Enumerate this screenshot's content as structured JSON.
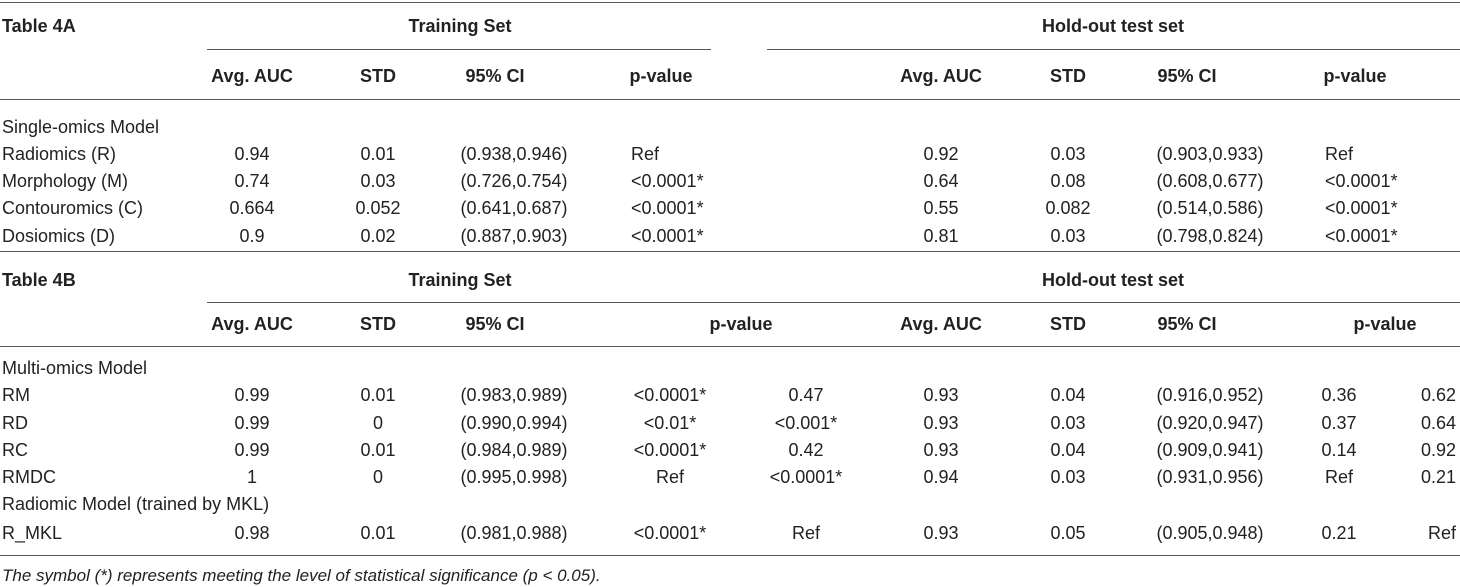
{
  "tableA": {
    "title": "Table 4A",
    "training_header": "Training Set",
    "holdout_header": "Hold-out test set",
    "columns": [
      "Avg. AUC",
      "STD",
      "95% CI",
      "p-value"
    ],
    "group_label": "Single-omics Model",
    "rows": [
      {
        "name": "Radiomics (R)",
        "tr": [
          "0.94",
          "0.01",
          "(0.938,0.946)",
          "Ref"
        ],
        "ho": [
          "0.92",
          "0.03",
          "(0.903,0.933)",
          "Ref"
        ]
      },
      {
        "name": "Morphology (M)",
        "tr": [
          "0.74",
          "0.03",
          "(0.726,0.754)",
          "<0.0001*"
        ],
        "ho": [
          "0.64",
          "0.08",
          "(0.608,0.677)",
          "<0.0001*"
        ]
      },
      {
        "name": "Contouromics (C)",
        "tr": [
          "0.664",
          "0.052",
          "(0.641,0.687)",
          "<0.0001*"
        ],
        "ho": [
          "0.55",
          "0.082",
          "(0.514,0.586)",
          "<0.0001*"
        ]
      },
      {
        "name": "Dosiomics (D)",
        "tr": [
          "0.9",
          "0.02",
          "(0.887,0.903)",
          "<0.0001*"
        ],
        "ho": [
          "0.81",
          "0.03",
          "(0.798,0.824)",
          "<0.0001*"
        ]
      }
    ]
  },
  "tableB": {
    "title": "Table 4B",
    "training_header": "Training Set",
    "holdout_header": "Hold-out test set",
    "columns": [
      "Avg. AUC",
      "STD",
      "95% CI",
      "p-value"
    ],
    "group1_label": "Multi-omics Model",
    "group1_rows": [
      {
        "name": "RM",
        "tr": [
          "0.99",
          "0.01",
          "(0.983,0.989)",
          "<0.0001*",
          "0.47"
        ],
        "ho": [
          "0.93",
          "0.04",
          "(0.916,0.952)",
          "0.36",
          "0.62"
        ]
      },
      {
        "name": "RD",
        "tr": [
          "0.99",
          "0",
          "(0.990,0.994)",
          "<0.01*",
          "<0.001*"
        ],
        "ho": [
          "0.93",
          "0.03",
          "(0.920,0.947)",
          "0.37",
          "0.64"
        ]
      },
      {
        "name": "RC",
        "tr": [
          "0.99",
          "0.01",
          "(0.984,0.989)",
          "<0.0001*",
          "0.42"
        ],
        "ho": [
          "0.93",
          "0.04",
          "(0.909,0.941)",
          "0.14",
          "0.92"
        ]
      },
      {
        "name": "RMDC",
        "tr": [
          "1",
          "0",
          "(0.995,0.998)",
          "Ref",
          "<0.0001*"
        ],
        "ho": [
          "0.94",
          "0.03",
          "(0.931,0.956)",
          "Ref",
          "0.21"
        ]
      }
    ],
    "group2_label": "Radiomic Model (trained by MKL)",
    "group2_rows": [
      {
        "name": "R_MKL",
        "tr": [
          "0.98",
          "0.01",
          "(0.981,0.988)",
          "<0.0001*",
          "Ref"
        ],
        "ho": [
          "0.93",
          "0.05",
          "(0.905,0.948)",
          "0.21",
          "Ref"
        ]
      }
    ]
  },
  "footnote": "The symbol (*) represents meeting the level of statistical significance (p < 0.05)."
}
